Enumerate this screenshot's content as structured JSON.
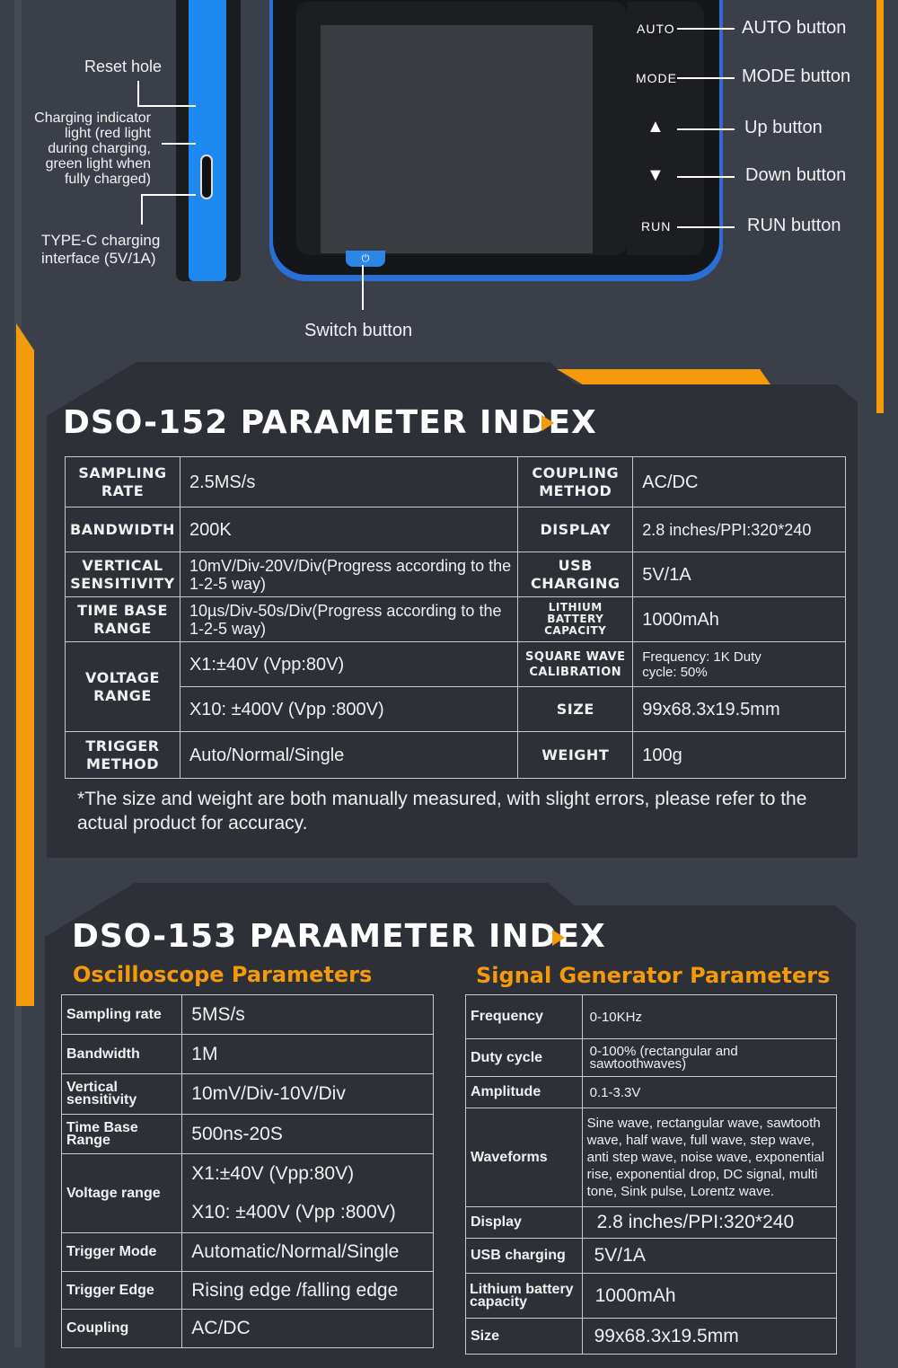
{
  "device": {
    "reset_hole": "Reset hole",
    "charging_indicator": "Charging indicator light (red light during charging, green light when fully charged)",
    "typec": "TYPE-C charging interface (5V/1A)",
    "switch": "Switch button",
    "keys": {
      "auto": "AUTO",
      "mode": "MODE",
      "run": "RUN"
    },
    "callouts": {
      "auto": "AUTO button",
      "mode": "MODE button",
      "up": "Up button",
      "down": "Down button",
      "run": "RUN button"
    }
  },
  "dso152": {
    "title": "DSO-152 PARAMETER INDEX",
    "rows": [
      {
        "k1": "SAMPLING RATE",
        "v1": "2.5MS/s",
        "k2": "COUPLING METHOD",
        "v2": "AC/DC"
      },
      {
        "k1": "BANDWIDTH",
        "v1": "200K",
        "k2": "DISPLAY",
        "v2": "2.8 inches/PPI:320*240"
      },
      {
        "k1": "VERTICAL SENSITIVITY",
        "v1": "10mV/Div-20V/Div(Progress according to the 1-2-5 way)",
        "k2": "USB CHARGING",
        "v2": "5V/1A"
      },
      {
        "k1": "TIME BASE RANGE",
        "v1": "10µs/Div-50s/Div(Progress according to the 1-2-5 way)",
        "k2": "LITHIUM BATTERY CAPACITY",
        "v2": "1000mAh"
      },
      {
        "k1": "VOLTAGE RANGE",
        "v1": "X1:±40V (Vpp:80V)",
        "k2": "SQUARE WAVE CALIBRATION",
        "v2": "Frequency: 1K Duty cycle: 50%"
      },
      {
        "v1": "X10: ±400V (Vpp :800V)",
        "k2": "SIZE",
        "v2": "99x68.3x19.5mm"
      },
      {
        "k1": "TRIGGER METHOD",
        "v1": "Auto/Normal/Single",
        "k2": "WEIGHT",
        "v2": "100g"
      }
    ],
    "note": "*The size and weight are both manually measured, with slight errors, please refer to the actual product for accuracy."
  },
  "dso153": {
    "title": "DSO-153 PARAMETER INDEX",
    "osc_title": "Oscilloscope Parameters",
    "sig_title": "Signal Generator Parameters",
    "osc": [
      {
        "k": "Sampling rate",
        "v": "5MS/s"
      },
      {
        "k": "Bandwidth",
        "v": "1M"
      },
      {
        "k": "Vertical sensitivity",
        "v": "10mV/Div-10V/Div"
      },
      {
        "k": "Time Base Range",
        "v": "500ns-20S"
      },
      {
        "k": "Voltage range",
        "v": "X1:±40V (Vpp:80V)",
        "v2": "X10: ±400V (Vpp :800V)"
      },
      {
        "k": "Trigger Mode",
        "v": "Automatic/Normal/Single"
      },
      {
        "k": "Trigger Edge",
        "v": "Rising edge /falling edge"
      },
      {
        "k": "Coupling",
        "v": "AC/DC"
      }
    ],
    "sig": [
      {
        "k": "Frequency",
        "v": "0-10KHz"
      },
      {
        "k": "Duty cycle",
        "v": "0-100% (rectangular and sawtoothwaves)"
      },
      {
        "k": "Amplitude",
        "v": "0.1-3.3V"
      },
      {
        "k": "Waveforms",
        "v": "Sine wave, rectangular wave, sawtooth wave, half wave, full wave, step wave, anti step wave, noise wave, exponential rise, exponential drop, DC signal, multi tone, Sink pulse, Lorentz wave."
      },
      {
        "k": "Display",
        "v": "2.8 inches/PPI:320*240"
      },
      {
        "k": "USB charging",
        "v": "5V/1A"
      },
      {
        "k": "Lithium battery capacity",
        "v": "1000mAh"
      },
      {
        "k": "Size",
        "v": "99x68.3x19.5mm"
      }
    ]
  },
  "colors": {
    "accent": "#f59a0a",
    "device_blue": "#1e88f0",
    "panel": "#2e3038",
    "background": "#3b3f4a"
  }
}
